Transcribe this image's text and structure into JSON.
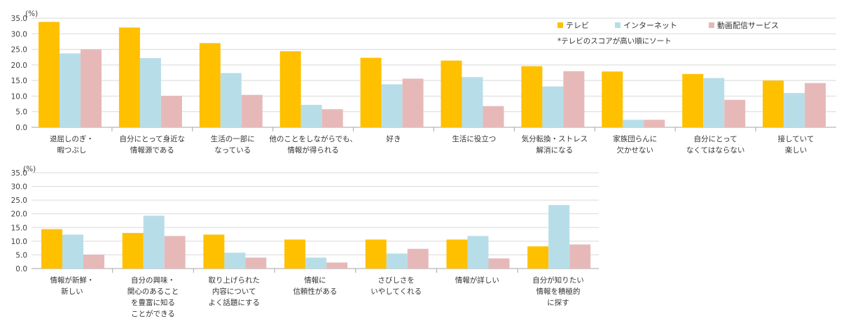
{
  "colors": {
    "series": [
      "#FFC000",
      "#B7DEE8",
      "#E6B9B8"
    ],
    "grid": "#D9D9D9",
    "axis": "#A6A6A6"
  },
  "legend": {
    "items": [
      "テレビ",
      "インターネット",
      "動画配信サービス"
    ]
  },
  "note": "*テレビのスコアが高い順にソート",
  "chart_data": [
    {
      "type": "bar",
      "unit_label": "(%)",
      "ylim": [
        0,
        35
      ],
      "yticks": [
        "0.0",
        "5.0",
        "10.0",
        "15.0",
        "20.0",
        "25.0",
        "30.0",
        "35.0"
      ],
      "grid": true,
      "legend_position": "top-right",
      "categories": [
        [
          "退屈しのぎ・",
          "暇つぶし"
        ],
        [
          "自分にとって身近な",
          "情報源である"
        ],
        [
          "生活の一部に",
          "なっている"
        ],
        [
          "他のことをしながらでも、",
          "情報が得られる"
        ],
        [
          "好き"
        ],
        [
          "生活に役立つ"
        ],
        [
          "気分転換・ストレス",
          "解消になる"
        ],
        [
          "家族団らんに",
          "欠かせない"
        ],
        [
          "自分にとって",
          "なくてはならない"
        ],
        [
          "接していて",
          "楽しい"
        ]
      ],
      "series": [
        {
          "name": "テレビ",
          "values": [
            33.8,
            32.0,
            27.0,
            24.4,
            22.3,
            21.4,
            19.6,
            17.9,
            17.1,
            15.0
          ]
        },
        {
          "name": "インターネット",
          "values": [
            23.7,
            22.2,
            17.4,
            7.2,
            13.8,
            16.1,
            13.1,
            2.4,
            15.8,
            11.0
          ]
        },
        {
          "name": "動画配信サービス",
          "values": [
            25.0,
            10.1,
            10.4,
            5.8,
            15.6,
            6.8,
            18.0,
            2.4,
            8.8,
            14.2
          ]
        }
      ]
    },
    {
      "type": "bar",
      "unit_label": "(%)",
      "ylim": [
        0,
        35
      ],
      "yticks": [
        "0.0",
        "5.0",
        "10.0",
        "15.0",
        "20.0",
        "25.0",
        "30.0",
        "35.0"
      ],
      "grid": true,
      "categories": [
        [
          "情報が新鮮・",
          "新しい"
        ],
        [
          "自分の興味・",
          "関心のあること",
          "を豊富に知る",
          "ことができる"
        ],
        [
          "取り上げられた",
          "内容について",
          "よく話題にする"
        ],
        [
          "情報に",
          "信頼性がある"
        ],
        [
          "さびしさを",
          "いやしてくれる"
        ],
        [
          "情報が詳しい"
        ],
        [
          "自分が知りたい",
          "情報を積極的",
          "に探す"
        ]
      ],
      "series": [
        {
          "name": "テレビ",
          "values": [
            14.4,
            13.0,
            12.4,
            10.6,
            10.6,
            10.6,
            8.1
          ]
        },
        {
          "name": "インターネット",
          "values": [
            12.4,
            19.3,
            5.8,
            4.0,
            5.5,
            11.9,
            23.2
          ]
        },
        {
          "name": "動画配信サービス",
          "values": [
            5.1,
            11.9,
            4.0,
            2.2,
            7.2,
            3.7,
            8.8
          ]
        }
      ]
    }
  ]
}
